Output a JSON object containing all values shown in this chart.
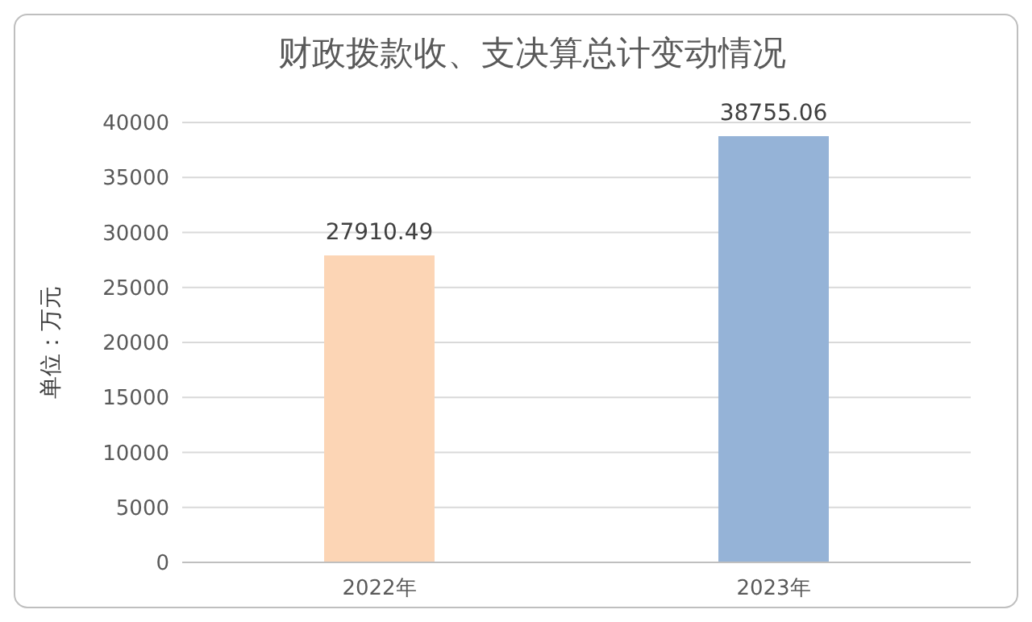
{
  "chart_data": {
    "type": "bar",
    "title": "财政拨款收、支决算总计变动情况",
    "ylabel": "单位：万元",
    "categories": [
      "2022年",
      "2023年"
    ],
    "values": [
      27910.49,
      38755.06
    ],
    "colors": [
      "#fcd5b5",
      "#95b3d7"
    ],
    "ylim": [
      0,
      40000
    ],
    "yticks": [
      0,
      5000,
      10000,
      15000,
      20000,
      25000,
      30000,
      35000,
      40000
    ],
    "grid": "y",
    "data_labels": true
  }
}
